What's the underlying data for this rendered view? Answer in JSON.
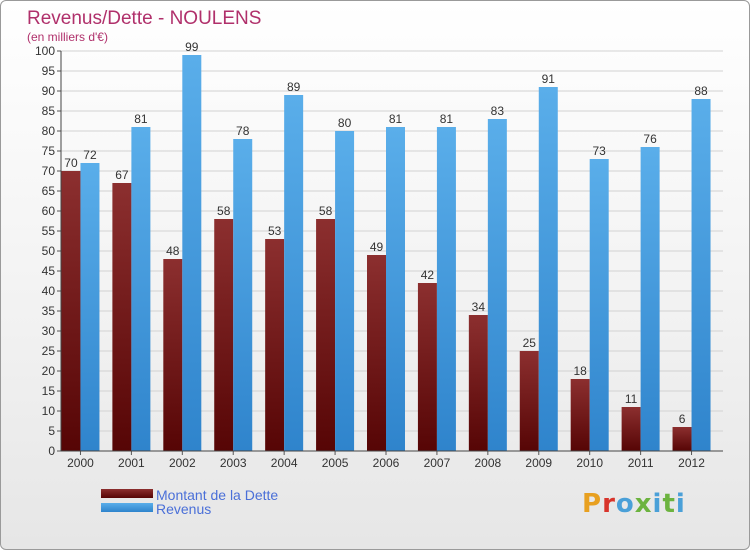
{
  "chart_data": {
    "type": "bar",
    "title": "Revenus/Dette - NOULENS",
    "subtitle": "(en milliers d'€)",
    "categories": [
      "2000",
      "2001",
      "2002",
      "2003",
      "2004",
      "2005",
      "2006",
      "2007",
      "2008",
      "2009",
      "2010",
      "2011",
      "2012"
    ],
    "series": [
      {
        "name": "Montant de la Dette",
        "color": "#7a1a1a",
        "values": [
          70,
          67,
          48,
          58,
          53,
          58,
          49,
          42,
          34,
          25,
          18,
          11,
          6
        ]
      },
      {
        "name": "Revenus",
        "color": "#4d9be0",
        "values": [
          72,
          81,
          99,
          78,
          89,
          80,
          81,
          81,
          83,
          91,
          73,
          76,
          88
        ]
      }
    ],
    "ylim": [
      0,
      100
    ],
    "ytick_step": 5,
    "grid": true,
    "legend_position": "bottom-left"
  },
  "logo": {
    "text": "Proxiti",
    "colors": [
      "#e8a020",
      "#4aa0d8",
      "#6cb33f",
      "#d8342b"
    ]
  }
}
